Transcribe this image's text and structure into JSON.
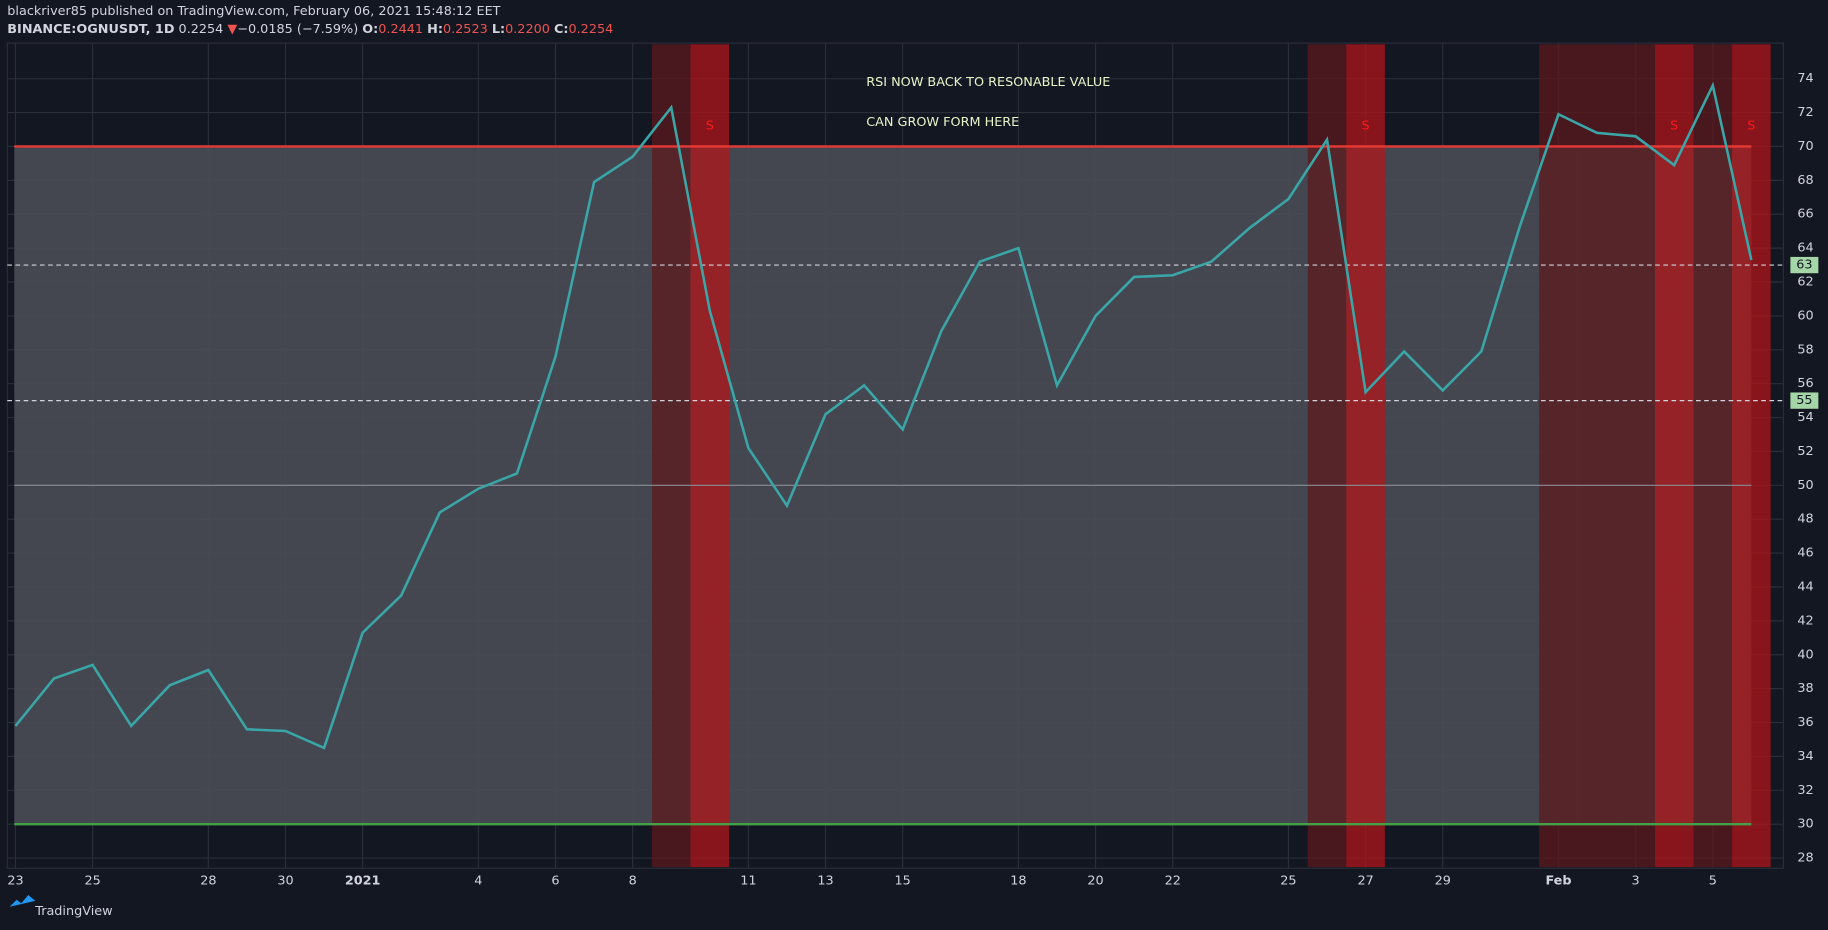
{
  "header": {
    "byline": "blackriver85 published on TradingView.com, February 06, 2021 15:48:12 EET",
    "symbol": "BINANCE:OGNUSDT, 1D",
    "price": "0.2254",
    "arrow": "▼",
    "change": "−0.0185 (−7.59%)",
    "o_label": "O:",
    "open": "0.2441",
    "h_label": "H:",
    "high": "0.2523",
    "l_label": "L:",
    "low": "0.2200",
    "c_label": "C:",
    "close": "0.2254"
  },
  "footer": {
    "brand": "TradingView"
  },
  "chart_data": {
    "type": "line",
    "categories": [
      "23",
      null,
      "25",
      null,
      null,
      "28",
      null,
      "30",
      null,
      "2021",
      null,
      null,
      "4",
      null,
      "6",
      null,
      "8",
      null,
      null,
      "11",
      null,
      "13",
      null,
      "15",
      null,
      null,
      "18",
      null,
      "20",
      null,
      "22",
      null,
      null,
      "25",
      null,
      "27",
      null,
      "29",
      null,
      null,
      "Feb",
      null,
      "3",
      null,
      "5",
      null
    ],
    "series": [
      {
        "name": "RSI",
        "color": "#3aa6a8",
        "values": [
          35.8,
          38.6,
          39.4,
          35.8,
          38.2,
          39.1,
          35.6,
          35.5,
          34.5,
          41.3,
          43.5,
          48.4,
          49.8,
          50.7,
          57.6,
          67.9,
          69.4,
          72.3,
          60.3,
          52.2,
          48.8,
          54.2,
          55.9,
          53.3,
          59.1,
          63.2,
          64.0,
          55.9,
          60.0,
          62.3,
          62.4,
          63.2,
          65.2,
          66.9,
          70.4,
          55.5,
          57.9,
          55.6,
          57.9,
          65.3,
          71.9,
          70.8,
          70.6,
          68.9,
          73.6,
          63.3
        ]
      }
    ],
    "band_colors": [
      null,
      null,
      null,
      null,
      null,
      null,
      null,
      null,
      null,
      null,
      null,
      null,
      null,
      null,
      null,
      null,
      null,
      "#5c1a1e",
      "#b0161a",
      null,
      null,
      null,
      null,
      null,
      null,
      null,
      null,
      null,
      null,
      null,
      null,
      null,
      null,
      null,
      "#5c1a1e",
      "#b0161a",
      null,
      null,
      null,
      null,
      "#5c1a1e",
      "#5c1a1e",
      "#5c1a1e",
      "#b0161a",
      "#5c1a1e",
      "#b0161a"
    ],
    "signal_labels": [
      null,
      null,
      null,
      null,
      null,
      null,
      null,
      null,
      null,
      null,
      null,
      null,
      null,
      null,
      null,
      null,
      null,
      null,
      "S",
      null,
      null,
      null,
      null,
      null,
      null,
      null,
      null,
      null,
      null,
      null,
      null,
      null,
      null,
      null,
      null,
      "S",
      null,
      null,
      null,
      null,
      null,
      null,
      null,
      "S",
      null,
      "S"
    ],
    "band": {
      "range": [
        30,
        70
      ],
      "color": "#4a4c55"
    },
    "reference_lines": [
      {
        "value": 70,
        "color": "#e53935"
      },
      {
        "value": 30,
        "color": "#43a047"
      },
      {
        "value": 50,
        "color": "#8a8c94"
      }
    ],
    "markers": [
      63,
      55
    ],
    "annotations": [
      "RSI NOW BACK TO RESONABLE VALUE",
      "CAN GROW FORM HERE"
    ],
    "ylim": [
      27.4,
      76.1
    ],
    "yticks": [
      28,
      30,
      32,
      34,
      36,
      38,
      40,
      42,
      44,
      46,
      48,
      50,
      52,
      54,
      56,
      58,
      60,
      62,
      64,
      66,
      68,
      70,
      72,
      74
    ],
    "grid": true
  }
}
